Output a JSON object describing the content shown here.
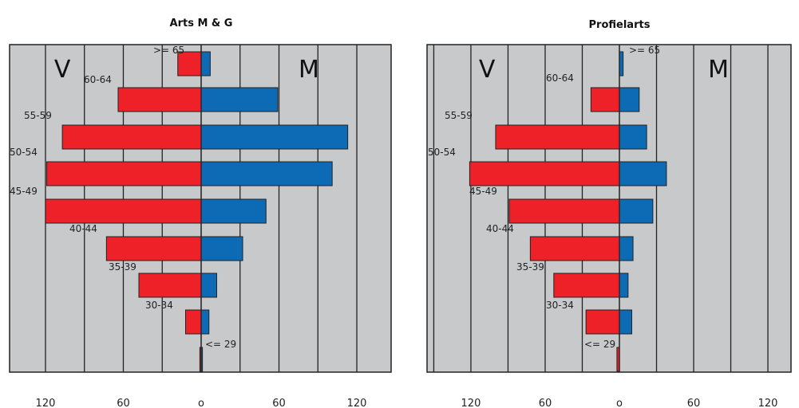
{
  "colors": {
    "female": "#ee2129",
    "male": "#0d6ab5",
    "background": "#c8c9cb"
  },
  "chart_data": [
    {
      "type": "bar",
      "orientation": "horizontal",
      "title": "Arts M & G",
      "left_label": "V",
      "right_label": "M",
      "categories": [
        ">= 65",
        "60-64",
        "55-59",
        "50-54",
        "45-49",
        "40-44",
        "35-39",
        "30-34",
        "<= 29"
      ],
      "series": [
        {
          "name": "V",
          "values": [
            18,
            64,
            107,
            119,
            120,
            73,
            48,
            12,
            1
          ]
        },
        {
          "name": "M",
          "values": [
            7,
            59,
            113,
            101,
            50,
            32,
            12,
            6,
            1
          ]
        }
      ],
      "xlim": [
        -150,
        150
      ],
      "xticks": [
        -120,
        -60,
        0,
        60,
        120
      ],
      "xtick_labels": [
        "120",
        "60",
        "o",
        "60",
        "120"
      ],
      "grid": true
    },
    {
      "type": "bar",
      "orientation": "horizontal",
      "title": "Profielarts",
      "left_label": "V",
      "right_label": "M",
      "categories": [
        ">= 65",
        "60-64",
        "55-59",
        "50-54",
        "45-49",
        "40-44",
        "35-39",
        "30-34",
        "<= 29"
      ],
      "series": [
        {
          "name": "V",
          "values": [
            0,
            23,
            100,
            121,
            89,
            72,
            53,
            27,
            2
          ]
        },
        {
          "name": "M",
          "values": [
            3,
            16,
            22,
            38,
            27,
            11,
            7,
            10,
            0
          ]
        }
      ],
      "xlim": [
        -150,
        150
      ],
      "xticks": [
        -120,
        -60,
        0,
        60,
        120
      ],
      "xtick_labels": [
        "120",
        "60",
        "o",
        "60",
        "120"
      ],
      "grid": true
    }
  ]
}
